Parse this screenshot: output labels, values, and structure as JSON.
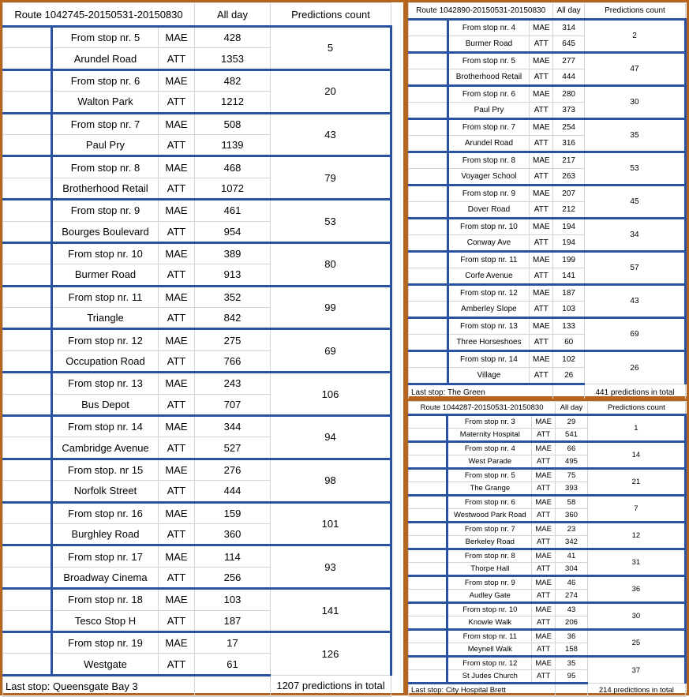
{
  "route1": {
    "title": "Route 1042745-20150531-20150830",
    "col_all_day": "All day",
    "col_predictions": "Predictions count",
    "rows": [
      {
        "from": "From stop nr. 5",
        "stop": "Arundel Road",
        "mae": "428",
        "att": "1353",
        "count": "5"
      },
      {
        "from": "From stop nr. 6",
        "stop": "Walton Park",
        "mae": "482",
        "att": "1212",
        "count": "20"
      },
      {
        "from": "From stop nr. 7",
        "stop": "Paul Pry",
        "mae": "508",
        "att": "1139",
        "count": "43"
      },
      {
        "from": "From stop nr. 8",
        "stop": "Brotherhood Retail",
        "mae": "468",
        "att": "1072",
        "count": "79"
      },
      {
        "from": "From stop nr. 9",
        "stop": "Bourges Boulevard",
        "mae": "461",
        "att": "954",
        "count": "53"
      },
      {
        "from": "From stop nr. 10",
        "stop": "Burmer Road",
        "mae": "389",
        "att": "913",
        "count": "80"
      },
      {
        "from": "From stop nr. 11",
        "stop": "Triangle",
        "mae": "352",
        "att": "842",
        "count": "99"
      },
      {
        "from": "From stop nr. 12",
        "stop": "Occupation Road",
        "mae": "275",
        "att": "766",
        "count": "69"
      },
      {
        "from": "From stop nr. 13",
        "stop": "Bus Depot",
        "mae": "243",
        "att": "707",
        "count": "106"
      },
      {
        "from": "From stop nr. 14",
        "stop": "Cambridge Avenue",
        "mae": "344",
        "att": "527",
        "count": "94"
      },
      {
        "from": "From stop. nr 15",
        "stop": "Norfolk Street",
        "mae": "276",
        "att": "444",
        "count": "98"
      },
      {
        "from": "From stop nr. 16",
        "stop": "Burghley Road",
        "mae": "159",
        "att": "360",
        "count": "101"
      },
      {
        "from": "From stop nr. 17",
        "stop": "Broadway Cinema",
        "mae": "114",
        "att": "256",
        "count": "93"
      },
      {
        "from": "From stop nr. 18",
        "stop": "Tesco Stop H",
        "mae": "103",
        "att": "187",
        "count": "141"
      },
      {
        "from": "From stop nr. 19",
        "stop": "Westgate",
        "mae": "17",
        "att": "61",
        "count": "126"
      }
    ],
    "last_stop": "Last stop: Queensgate Bay 3",
    "total": "1207 predictions in total"
  },
  "route2": {
    "title": "Route 1042890-20150531-20150830",
    "col_all_day": "All day",
    "col_predictions": "Predictions count",
    "rows": [
      {
        "from": "From stop nr. 4",
        "stop": "Burmer Road",
        "mae": "314",
        "att": "645",
        "count": "2"
      },
      {
        "from": "From stop nr. 5",
        "stop": "Brotherhood Retail",
        "mae": "277",
        "att": "444",
        "count": "47"
      },
      {
        "from": "From stop nr. 6",
        "stop": "Paul Pry",
        "mae": "280",
        "att": "373",
        "count": "30"
      },
      {
        "from": "From stop nr. 7",
        "stop": "Arundel Road",
        "mae": "254",
        "att": "316",
        "count": "35"
      },
      {
        "from": "From stop nr. 8",
        "stop": "Voyager School",
        "mae": "217",
        "att": "263",
        "count": "53"
      },
      {
        "from": "From stop nr. 9",
        "stop": "Dover Road",
        "mae": "207",
        "att": "212",
        "count": "45"
      },
      {
        "from": "From stop nr. 10",
        "stop": "Conway Ave",
        "mae": "194",
        "att": "194",
        "count": "34"
      },
      {
        "from": "From stop nr. 11",
        "stop": "Corfe Avenue",
        "mae": "199",
        "att": "141",
        "count": "57"
      },
      {
        "from": "From stop nr. 12",
        "stop": "Amberley Slope",
        "mae": "187",
        "att": "103",
        "count": "43"
      },
      {
        "from": "From stop nr. 13",
        "stop": "Three Horseshoes",
        "mae": "133",
        "att": "60",
        "count": "69"
      },
      {
        "from": "From stop nr. 14",
        "stop": "Village",
        "mae": "102",
        "att": "26",
        "count": "26"
      }
    ],
    "last_stop": "Last stop: The Green",
    "total": "441 predictions in total"
  },
  "route3": {
    "title": "Route 1044287-20150531-20150830",
    "col_all_day": "All day",
    "col_predictions": "Predictions count",
    "rows": [
      {
        "from": "From stop nr. 3",
        "stop": "Maternity Hospital",
        "mae": "29",
        "att": "541",
        "count": "1"
      },
      {
        "from": "From stop nr. 4",
        "stop": "West Parade",
        "mae": "66",
        "att": "495",
        "count": "14"
      },
      {
        "from": "From stop nr. 5",
        "stop": "The Grange",
        "mae": "75",
        "att": "393",
        "count": "21"
      },
      {
        "from": "From stop nr. 6",
        "stop": "Westwood Park Road",
        "mae": "58",
        "att": "360",
        "count": "7"
      },
      {
        "from": "From stop nr. 7",
        "stop": "Berkeley Road",
        "mae": "23",
        "att": "342",
        "count": "12"
      },
      {
        "from": "From stop nr. 8",
        "stop": "Thorpe Hall",
        "mae": "41",
        "att": "304",
        "count": "31"
      },
      {
        "from": "From stop nr. 9",
        "stop": "Audley Gate",
        "mae": "46",
        "att": "274",
        "count": "36"
      },
      {
        "from": "From stop nr. 10",
        "stop": "Knowle Walk",
        "mae": "43",
        "att": "206",
        "count": "30"
      },
      {
        "from": "From stop nr. 11",
        "stop": "Meynell Walk",
        "mae": "36",
        "att": "158",
        "count": "25"
      },
      {
        "from": "From stop nr. 12",
        "stop": "St Judes Church",
        "mae": "35",
        "att": "95",
        "count": "37"
      }
    ],
    "last_stop": "Last stop: City Hospital Brett",
    "total": "214 predictions in total"
  },
  "labels": {
    "mae": "MAE",
    "att": "ATT"
  },
  "colors": {
    "panel_border": "#b5651d",
    "group_border": "#2952a3",
    "grid": "#d4d4d4"
  }
}
